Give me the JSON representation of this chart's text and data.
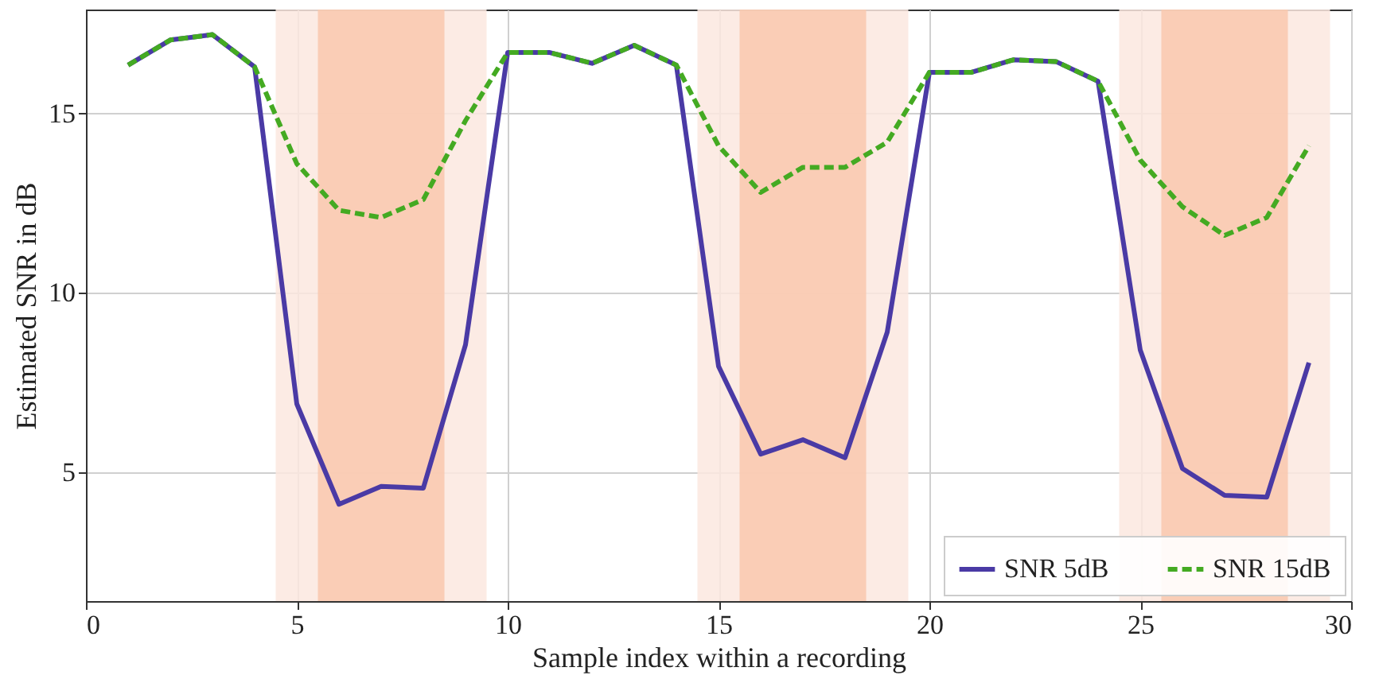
{
  "chart_data": {
    "type": "line",
    "xlabel": "Sample index within a recording",
    "ylabel": "Estimated SNR in dB",
    "x": [
      1,
      2,
      3,
      4,
      5,
      6,
      7,
      8,
      9,
      10,
      11,
      12,
      13,
      14,
      15,
      16,
      17,
      18,
      19,
      20,
      21,
      22,
      23,
      24,
      25,
      26,
      27,
      28,
      29
    ],
    "series": [
      {
        "name": "SNR 5dB",
        "color": "#4a3aa5",
        "line_style": "solid",
        "values": [
          16.35,
          17.05,
          17.2,
          16.3,
          6.9,
          4.1,
          4.6,
          4.55,
          8.55,
          16.7,
          16.7,
          16.4,
          16.9,
          16.35,
          7.95,
          5.5,
          5.9,
          5.4,
          8.9,
          16.15,
          16.15,
          16.5,
          16.45,
          15.9,
          8.4,
          5.1,
          4.35,
          4.3,
          8.05
        ]
      },
      {
        "name": "SNR 15dB",
        "color": "#44aa22",
        "line_style": "dashed",
        "values": [
          16.35,
          17.05,
          17.2,
          16.3,
          13.6,
          12.3,
          12.1,
          12.6,
          14.8,
          16.7,
          16.7,
          16.4,
          16.9,
          16.35,
          14.1,
          12.8,
          13.5,
          13.5,
          14.2,
          16.15,
          16.15,
          16.5,
          16.45,
          15.9,
          13.7,
          12.4,
          11.6,
          12.1,
          14.1
        ]
      }
    ],
    "xlim": [
      0,
      30
    ],
    "xticks": [
      0,
      5,
      10,
      15,
      20,
      25,
      30
    ],
    "ylim": [
      1.4,
      17.9
    ],
    "yticks": [
      5,
      10,
      15
    ],
    "bands": [
      {
        "axis": "x",
        "from": 4.5,
        "to": 9.5,
        "color": "#fce8df"
      },
      {
        "axis": "x",
        "from": 5.5,
        "to": 8.5,
        "color": "#f9c8ae"
      },
      {
        "axis": "x",
        "from": 14.5,
        "to": 19.5,
        "color": "#fce8df"
      },
      {
        "axis": "x",
        "from": 15.5,
        "to": 18.5,
        "color": "#f9c8ae"
      },
      {
        "axis": "x",
        "from": 24.5,
        "to": 29.5,
        "color": "#fce8df"
      },
      {
        "axis": "x",
        "from": 25.5,
        "to": 28.5,
        "color": "#f9c8ae"
      }
    ],
    "grid": true,
    "legend": "bottom right",
    "marker": "none"
  }
}
